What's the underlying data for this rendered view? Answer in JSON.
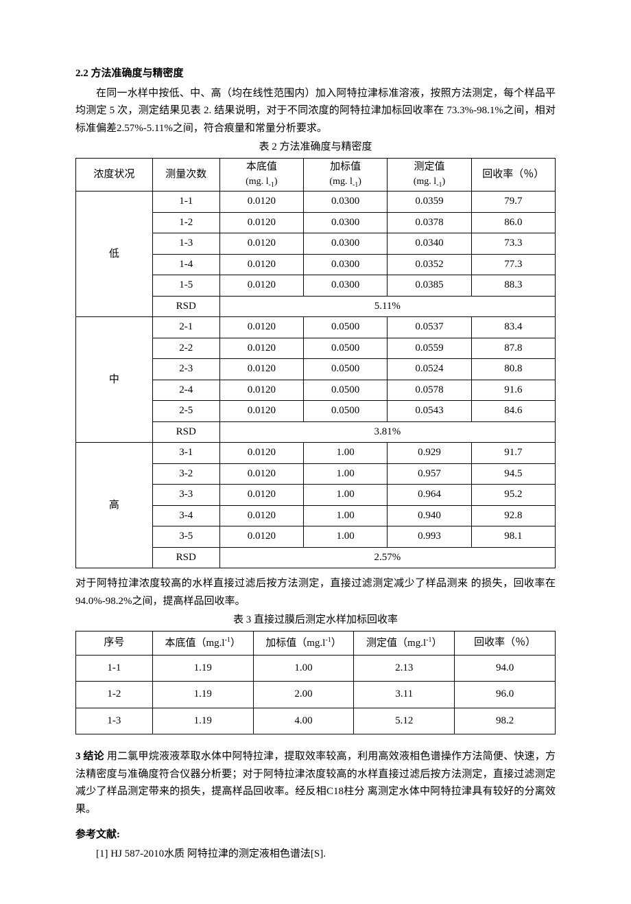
{
  "section_22": {
    "heading": "2.2 方法准确度与精密度",
    "para": "在同一水样中按低、中、高（均在线性范围内）加入阿特拉津标准溶液，按照方法测定，每个样品平均测定 5 次，测定结果见表 2. 结果说明，对于不同浓度的阿特拉津加标回收率在 73.3%-98.1%之间，相对标准偏差2.57%-5.11%之间，符合痕量和常量分析要求。",
    "caption": "表 2 方法准确度与精密度"
  },
  "table2": {
    "headers": {
      "c1": "浓度状况",
      "c2": "测量次数",
      "c3a": "本底值",
      "c3b": "(mg. l",
      "c3c": ")",
      "c4a": "加标值",
      "c4b": "(mg. l",
      "c4c": ")",
      "c5a": "测定值",
      "c5b": "(mg. l",
      "c5c": ")",
      "c6": "回收率（％）"
    },
    "groups": [
      {
        "label": "低",
        "rows": [
          {
            "n": "1-1",
            "b": "0.0120",
            "a": "0.0300",
            "m": "0.0359",
            "r": "79.7"
          },
          {
            "n": "1-2",
            "b": "0.0120",
            "a": "0.0300",
            "m": "0.0378",
            "r": "86.0"
          },
          {
            "n": "1-3",
            "b": "0.0120",
            "a": "0.0300",
            "m": "0.0340",
            "r": "73.3"
          },
          {
            "n": "1-4",
            "b": "0.0120",
            "a": "0.0300",
            "m": "0.0352",
            "r": "77.3"
          },
          {
            "n": "1-5",
            "b": "0.0120",
            "a": "0.0300",
            "m": "0.0385",
            "r": "88.3"
          }
        ],
        "rsd_label": "RSD",
        "rsd_value": "5.11%"
      },
      {
        "label": "中",
        "rows": [
          {
            "n": "2-1",
            "b": "0.0120",
            "a": "0.0500",
            "m": "0.0537",
            "r": "83.4"
          },
          {
            "n": "2-2",
            "b": "0.0120",
            "a": "0.0500",
            "m": "0.0559",
            "r": "87.8"
          },
          {
            "n": "2-3",
            "b": "0.0120",
            "a": "0.0500",
            "m": "0.0524",
            "r": "80.8"
          },
          {
            "n": "2-4",
            "b": "0.0120",
            "a": "0.0500",
            "m": "0.0578",
            "r": "91.6"
          },
          {
            "n": "2-5",
            "b": "0.0120",
            "a": "0.0500",
            "m": "0.0543",
            "r": "84.6"
          }
        ],
        "rsd_label": "RSD",
        "rsd_value": "3.81%"
      },
      {
        "label": "高",
        "rows": [
          {
            "n": "3-1",
            "b": "0.0120",
            "a": "1.00",
            "m": "0.929",
            "r": "91.7"
          },
          {
            "n": "3-2",
            "b": "0.0120",
            "a": "1.00",
            "m": "0.957",
            "r": "94.5"
          },
          {
            "n": "3-3",
            "b": "0.0120",
            "a": "1.00",
            "m": "0.964",
            "r": "95.2"
          },
          {
            "n": "3-4",
            "b": "0.0120",
            "a": "1.00",
            "m": "0.940",
            "r": "92.8"
          },
          {
            "n": "3-5",
            "b": "0.0120",
            "a": "1.00",
            "m": "0.993",
            "r": "98.1"
          }
        ],
        "rsd_label": "RSD",
        "rsd_value": "2.57%"
      }
    ]
  },
  "para_after_t2": "对于阿特拉津浓度较高的水样直接过滤后按方法测定，直接过滤测定减少了样品测来 的损失，回收率在 94.0%-98.2%之间，提高样品回收率。",
  "table3": {
    "caption": "表 3 直接过膜后测定水样加标回收率",
    "headers": {
      "c1": "序号",
      "c2a": "本底值（mg.l",
      "c2b": "）",
      "c3a": "加标值（mg.l",
      "c3b": "）",
      "c4a": "测定值（mg.l",
      "c4b": "）",
      "c5": "回收率（％）"
    },
    "rows": [
      {
        "n": "1-1",
        "b": "1.19",
        "a": "1.00",
        "m": "2.13",
        "r": "94.0"
      },
      {
        "n": "1-2",
        "b": "1.19",
        "a": "2.00",
        "m": "3.11",
        "r": "96.0"
      },
      {
        "n": "1-3",
        "b": "1.19",
        "a": "4.00",
        "m": "5.12",
        "r": "98.2"
      }
    ]
  },
  "conclusion": {
    "heading": "3 结论 ",
    "text": "用二氯甲烷液液萃取水体中阿特拉津，提取效率较高，利用高效液相色谱操作方法简便、快速，方法精密度与准确度符合仪器分析要；对于阿特拉津浓度较高的水样直接过滤后按方法测定，直接过滤测定减少了样品测定带来的损失，提高样品回收率。经反相C18柱分 离测定水体中阿特拉津具有较好的分离效果。"
  },
  "references": {
    "heading": "参考文献:",
    "r1": "[1] HJ 587-2010水质 阿特拉津的测定液相色谱法[S]."
  },
  "sub_minus1": "-1",
  "sup_minus1": "-1",
  "col_widths_t2": [
    "16%",
    "14%",
    "17.5%",
    "17.5%",
    "17.5%",
    "17.5%"
  ],
  "col_widths_t3": [
    "16%",
    "21%",
    "21%",
    "21%",
    "21%"
  ]
}
